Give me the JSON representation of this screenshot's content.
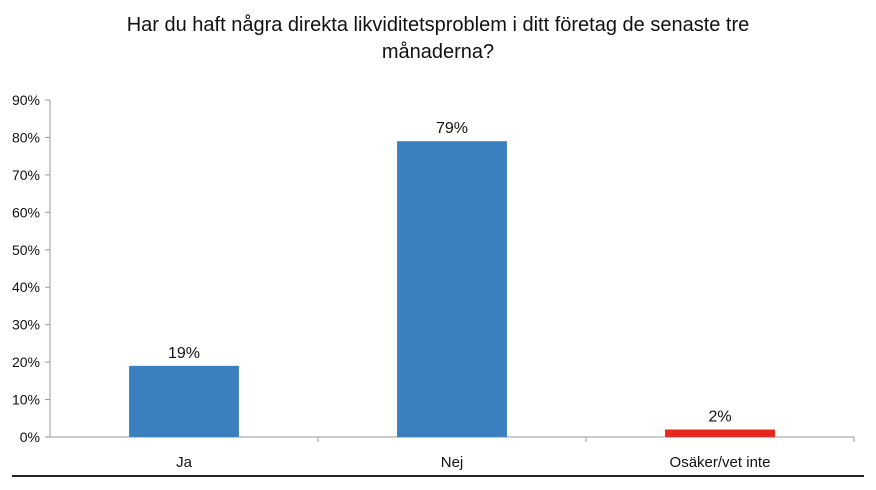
{
  "chart_data": {
    "type": "bar",
    "title_lines": [
      "Har du haft några direkta likviditetsproblem i ditt företag de senaste tre",
      "månaderna?"
    ],
    "categories": [
      "Ja",
      "Nej",
      "Osäker/vet inte"
    ],
    "values": [
      19,
      79,
      2
    ],
    "value_labels": [
      "19%",
      "79%",
      "2%"
    ],
    "bar_colors": [
      "#3a7fbe",
      "#3a7fbe",
      "#e8281e"
    ],
    "ylim": [
      0,
      90
    ],
    "yticks": [
      0,
      10,
      20,
      30,
      40,
      50,
      60,
      70,
      80,
      90
    ],
    "ytick_labels": [
      "0%",
      "10%",
      "20%",
      "30%",
      "40%",
      "50%",
      "60%",
      "70%",
      "80%",
      "90%"
    ],
    "grid": false,
    "legend": "none"
  }
}
